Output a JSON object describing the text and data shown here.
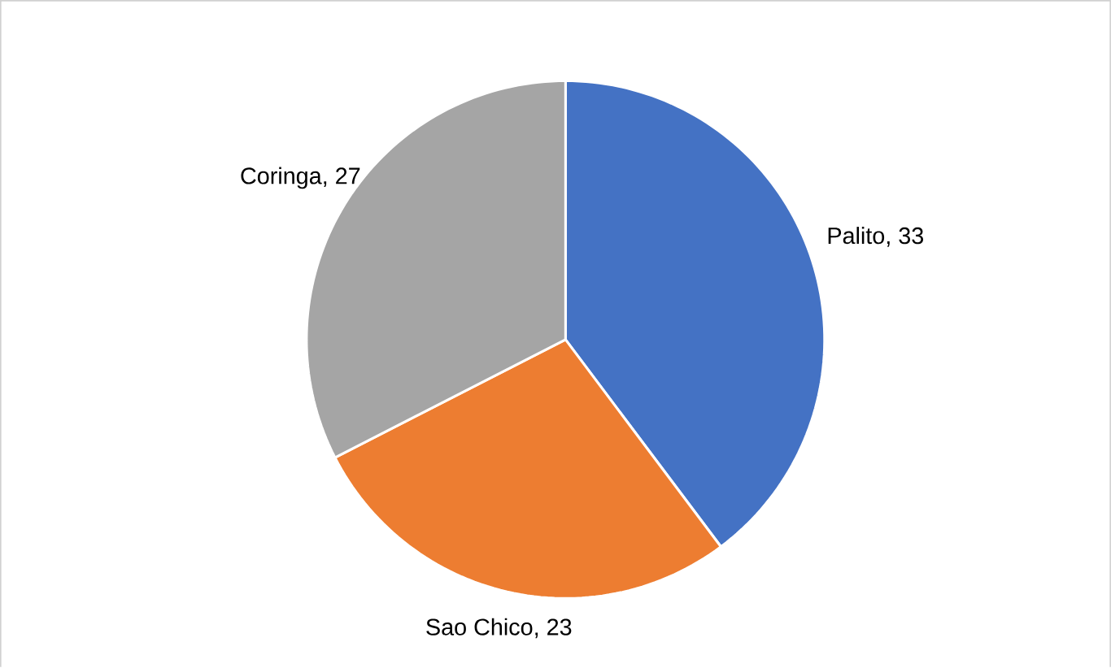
{
  "chart_data": {
    "type": "pie",
    "categories": [
      "Palito",
      "Sao Chico",
      "Coringa"
    ],
    "values": [
      33,
      23,
      27
    ],
    "colors": [
      "#4472c4",
      "#ed7d31",
      "#a5a5a5"
    ],
    "value_labels": [
      ", 33",
      ", 23",
      ", 27"
    ]
  }
}
